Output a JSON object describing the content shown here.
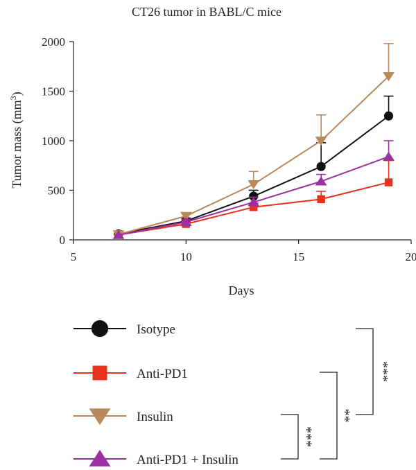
{
  "chart_data": {
    "type": "line",
    "title": "CT26 tumor in BABL/C mice",
    "xlabel": "Days",
    "ylabel_main": "Tumor mass (mm",
    "ylabel_sup": "3",
    "ylabel_close": ")",
    "xlim": [
      5,
      20
    ],
    "ylim": [
      0,
      2000
    ],
    "xticks": [
      5,
      10,
      15,
      20
    ],
    "yticks": [
      0,
      500,
      1000,
      1500,
      2000
    ],
    "grid": false,
    "legend_position": "bottom",
    "series": [
      {
        "name": "Isotype",
        "color": "#111111",
        "marker": "circle",
        "x": [
          7,
          10,
          13,
          16,
          19
        ],
        "y": [
          60,
          190,
          440,
          740,
          1250
        ],
        "err": [
          0,
          30,
          60,
          240,
          200
        ]
      },
      {
        "name": "Anti-PD1",
        "color": "#e8321e",
        "marker": "square",
        "x": [
          7,
          10,
          13,
          16,
          19
        ],
        "y": [
          50,
          160,
          330,
          410,
          580
        ],
        "err": [
          0,
          20,
          40,
          80,
          220
        ]
      },
      {
        "name": "Insulin",
        "color": "#b8895a",
        "marker": "triangle-down",
        "x": [
          7,
          10,
          13,
          16,
          19
        ],
        "y": [
          55,
          240,
          560,
          1000,
          1650
        ],
        "err": [
          0,
          30,
          130,
          260,
          330
        ]
      },
      {
        "name": "Anti-PD1 + Insulin",
        "color": "#9b30a0",
        "marker": "triangle-up",
        "x": [
          7,
          10,
          13,
          16,
          19
        ],
        "y": [
          50,
          180,
          380,
          590,
          840
        ],
        "err": [
          0,
          30,
          50,
          70,
          160
        ]
      }
    ],
    "significance": [
      {
        "label": "***",
        "between": [
          "Isotype",
          "Insulin"
        ]
      },
      {
        "label": "**",
        "between": [
          "Anti-PD1",
          "Anti-PD1 + Insulin"
        ]
      },
      {
        "label": "***",
        "between": [
          "Insulin",
          "Anti-PD1 + Insulin"
        ]
      }
    ]
  }
}
